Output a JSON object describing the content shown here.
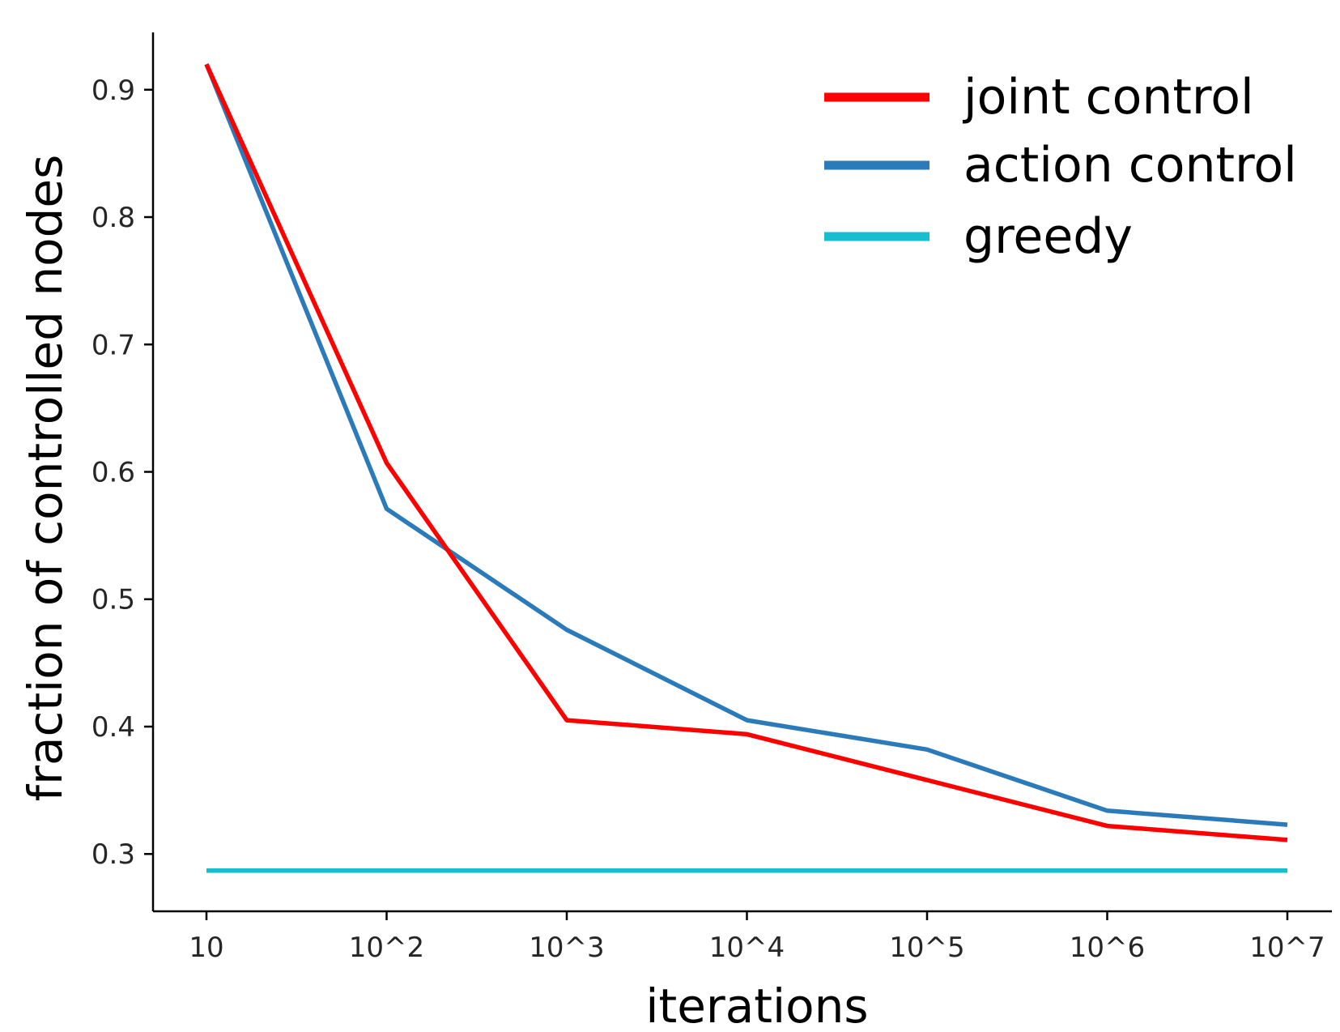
{
  "chart_data": {
    "type": "line",
    "title": "",
    "xlabel": "iterations",
    "ylabel": "fraction of controlled nodes",
    "categories": [
      "10",
      "10^2",
      "10^3",
      "10^4",
      "10^5",
      "10^6",
      "10^7"
    ],
    "ylim": [
      0.255,
      0.945
    ],
    "yticks": [
      0.3,
      0.4,
      0.5,
      0.6,
      0.7,
      0.8,
      0.9
    ],
    "ytick_labels": [
      "0.3",
      "0.4",
      "0.5",
      "0.6",
      "0.7",
      "0.8",
      "0.9"
    ],
    "grid": false,
    "legend_position": "top-right",
    "series": [
      {
        "name": "joint control",
        "color": "#ff0000",
        "values": [
          0.92,
          0.607,
          0.405,
          0.394,
          0.358,
          0.322,
          0.311
        ]
      },
      {
        "name": "action control",
        "color": "#2b7bba",
        "values": [
          0.92,
          0.571,
          0.476,
          0.405,
          0.382,
          0.334,
          0.323
        ]
      },
      {
        "name": "greedy",
        "color": "#17becf",
        "values": [
          0.287,
          0.287,
          0.287,
          0.287,
          0.287,
          0.287,
          0.287
        ]
      }
    ]
  }
}
